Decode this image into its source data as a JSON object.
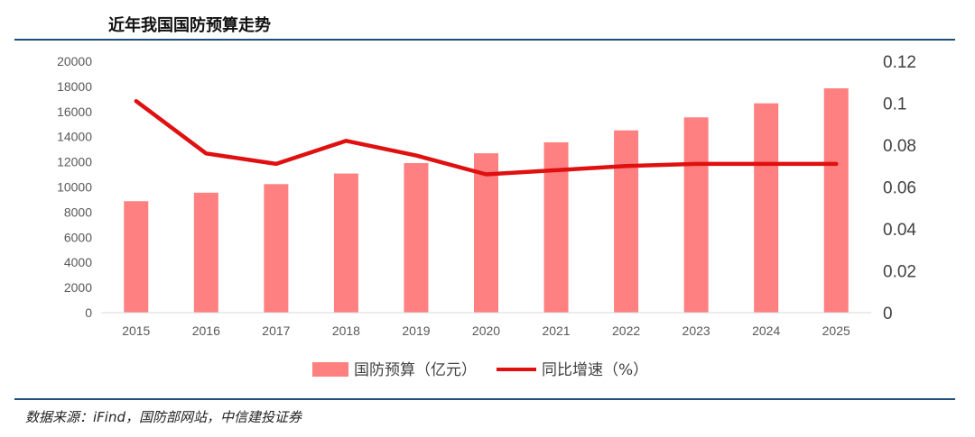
{
  "header": {
    "title": "近年我国国防预算走势"
  },
  "footer": {
    "source": "数据来源：iFind，国防部网站，中信建投证券"
  },
  "colors": {
    "bar": "#ff8080",
    "line": "#e01010",
    "rule": "#1f4e79"
  },
  "chart_data": {
    "type": "bar",
    "categories": [
      "2015",
      "2016",
      "2017",
      "2018",
      "2019",
      "2020",
      "2021",
      "2022",
      "2023",
      "2024",
      "2025"
    ],
    "series": [
      {
        "name": "国防预算（亿元）",
        "type": "bar",
        "axis": "left",
        "values": [
          8870,
          9544,
          10226,
          11070,
          11899,
          12680,
          13553,
          14504,
          15537,
          16655,
          17847
        ]
      },
      {
        "name": "同比增速（%）",
        "type": "line",
        "axis": "right",
        "values": [
          0.101,
          0.076,
          0.071,
          0.082,
          0.075,
          0.066,
          0.068,
          0.07,
          0.071,
          0.071,
          0.071
        ]
      }
    ],
    "left_axis": {
      "ylim": [
        0,
        20000
      ],
      "ticks": [
        "0",
        "2000",
        "4000",
        "6000",
        "8000",
        "10000",
        "12000",
        "14000",
        "16000",
        "18000",
        "20000"
      ]
    },
    "right_axis": {
      "ylim": [
        0,
        0.12
      ],
      "ticks": [
        "0",
        "0.02",
        "0.04",
        "0.06",
        "0.08",
        "0.1",
        "0.12"
      ]
    },
    "grid": false,
    "legend": "bottom"
  }
}
